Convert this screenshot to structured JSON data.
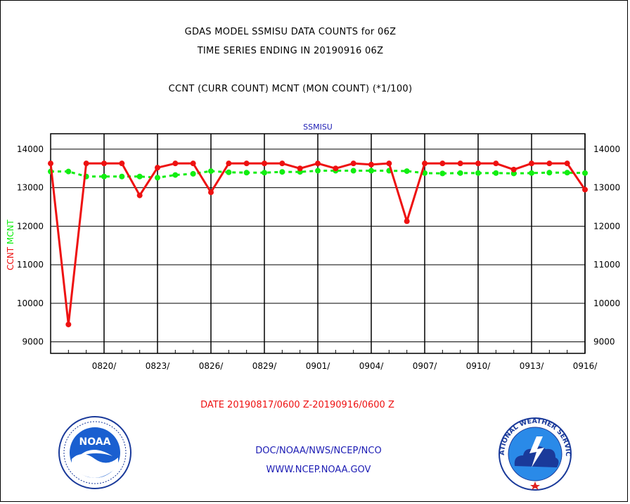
{
  "header": {
    "line1": "GDAS MODEL SSMISU DATA COUNTS for 06Z",
    "line2": "TIME SERIES ENDING IN 20190916 06Z",
    "line3": "CCNT (CURR COUNT) MCNT (MON COUNT) (*1/100)"
  },
  "chart_data": {
    "type": "line",
    "title": "SSMISU",
    "ylabel_series": [
      "CCNT",
      "MCNT"
    ],
    "date_range": "DATE 20190817/0600 Z-20190916/0600 Z",
    "ylim": [
      8700,
      14400
    ],
    "yticks": [
      9000,
      10000,
      11000,
      12000,
      13000,
      14000
    ],
    "xticks": [
      "0820/",
      "0823/",
      "0826/",
      "0829/",
      "0901/",
      "0904/",
      "0907/",
      "0910/",
      "0913/",
      "0916/"
    ],
    "x": [
      "0817",
      "0818",
      "0819",
      "0820",
      "0821",
      "0822",
      "0823",
      "0824",
      "0825",
      "0826",
      "0827",
      "0828",
      "0829",
      "0830",
      "0831",
      "0901",
      "0902",
      "0903",
      "0904",
      "0905",
      "0906",
      "0907",
      "0908",
      "0909",
      "0910",
      "0911",
      "0912",
      "0913",
      "0914",
      "0915",
      "0916"
    ],
    "series": [
      {
        "name": "CCNT",
        "color": "#ee1111",
        "values": [
          13630,
          9450,
          13630,
          13630,
          13630,
          12800,
          13520,
          13630,
          13630,
          12880,
          13630,
          13630,
          13630,
          13630,
          13500,
          13630,
          13500,
          13630,
          13600,
          13630,
          12130,
          13630,
          13630,
          13630,
          13630,
          13630,
          13470,
          13630,
          13630,
          13630,
          12950
        ]
      },
      {
        "name": "MCNT",
        "color": "#11ee11",
        "values": [
          13420,
          13420,
          13290,
          13290,
          13290,
          13290,
          13260,
          13330,
          13360,
          13430,
          13400,
          13390,
          13390,
          13410,
          13410,
          13440,
          13440,
          13440,
          13440,
          13440,
          13430,
          13380,
          13370,
          13380,
          13380,
          13380,
          13370,
          13380,
          13390,
          13390,
          13380
        ]
      }
    ],
    "grid": true,
    "colors": {
      "axis": "#000000",
      "title": "#1c1cb4"
    }
  },
  "footer": {
    "agency": "DOC/NOAA/NWS/NCEP/NCO",
    "url": "WWW.NCEP.NOAA.GOV",
    "noaa_logo": "noaa-logo",
    "noaa_logo_text": "NOAA",
    "nws_logo": "nws-logo",
    "nws_logo_ring": "NATIONAL WEATHER SERVICE"
  }
}
